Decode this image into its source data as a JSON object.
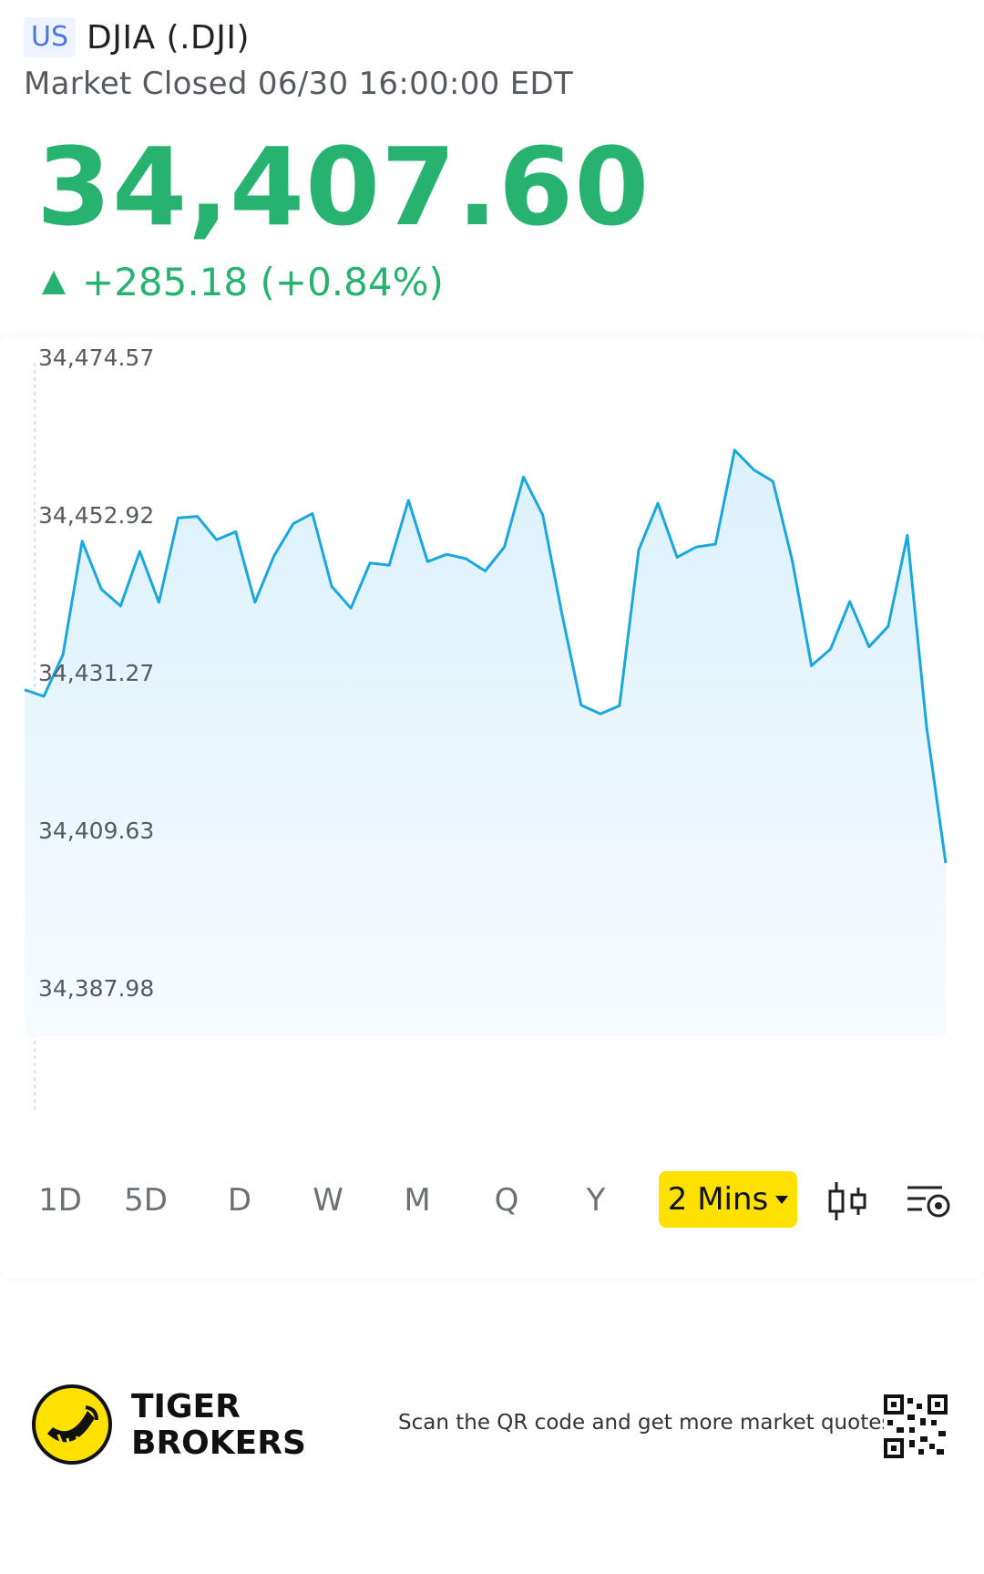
{
  "header": {
    "market_badge": "US",
    "symbol_title": "DJIA (.DJI)",
    "status": "Market Closed 06/30 16:00:00 EDT"
  },
  "quote": {
    "price": "34,407.60",
    "change": "+285.18 (+0.84%)",
    "direction_icon": "triangle-up-icon",
    "up_color": "#27b36f"
  },
  "chart_data": {
    "type": "area",
    "y_tick_labels": [
      "34,474.57",
      "34,452.92",
      "34,431.27",
      "34,409.63",
      "34,387.98"
    ],
    "ylim": [
      34387.98,
      34474.57
    ],
    "line_color": "#1aa7dd",
    "fill_color": "#e3f4fc",
    "grid": false,
    "values": [
      34431.8,
      34430.9,
      34436.6,
      34452.2,
      34445.6,
      34443.3,
      34450.8,
      34443.8,
      34455.4,
      34455.6,
      34452.4,
      34453.5,
      34443.8,
      34450.2,
      34454.6,
      34456.0,
      34446.0,
      34443.0,
      34449.2,
      34448.9,
      34457.8,
      34449.4,
      34450.4,
      34449.8,
      34448.1,
      34451.4,
      34461.0,
      34455.8,
      34442.2,
      34429.7,
      34428.5,
      34429.6,
      34451.0,
      34457.4,
      34450.0,
      34451.4,
      34451.8,
      34464.7,
      34462.0,
      34460.4,
      34449.6,
      34435.1,
      34437.4,
      34443.9,
      34437.7,
      34440.5,
      34453.0,
      34426.8,
      34408.0
    ]
  },
  "timeframes": {
    "options": [
      "1D",
      "5D",
      "D",
      "W",
      "M",
      "Q",
      "Y"
    ],
    "selected": "2 Mins",
    "candlestick_icon": "candlestick-icon",
    "settings_icon": "chart-settings-icon"
  },
  "footer": {
    "brand_line1": "TIGER",
    "brand_line2": "BROKERS",
    "scan_text": "Scan the QR code and get more market quotes",
    "logo_icon": "tiger-logo-icon",
    "qr_icon": "qr-code-icon"
  }
}
